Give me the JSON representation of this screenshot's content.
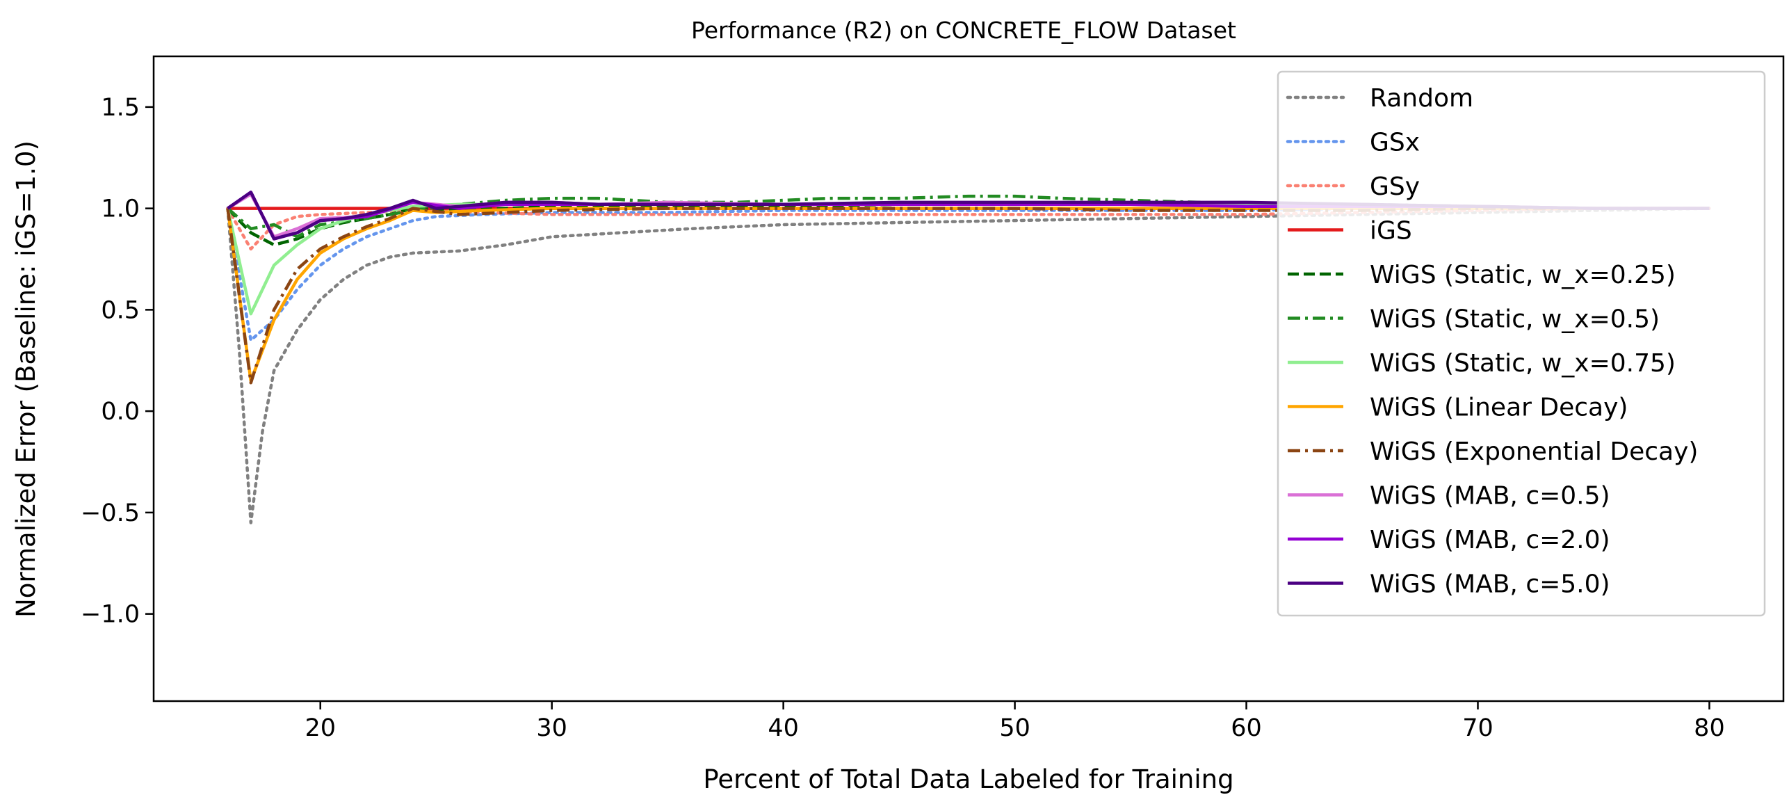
{
  "chart_data": {
    "type": "line",
    "title": "Performance (R2) on CONCRETE_FLOW Dataset",
    "xlabel": "Percent of Total Data Labeled for Training",
    "ylabel": "Normalized Error (Baseline: iGS=1.0)",
    "xlim": [
      12.8,
      83.2
    ],
    "ylim": [
      -1.43,
      1.75
    ],
    "xticks": [
      20,
      30,
      40,
      50,
      60,
      70,
      80
    ],
    "yticks": [
      -1.0,
      -0.5,
      0.0,
      0.5,
      1.0,
      1.5
    ],
    "xtick_labels": [
      "20",
      "30",
      "40",
      "50",
      "60",
      "70",
      "80"
    ],
    "ytick_labels": [
      "−1.0",
      "−0.5",
      "0.0",
      "0.5",
      "1.0",
      "1.5"
    ],
    "grid": false,
    "legend_position": "top-right",
    "series": [
      {
        "name": "Random",
        "color": "#808080",
        "dash": "dotted",
        "width": 4.5,
        "points": [
          [
            16,
            1.0
          ],
          [
            16.5,
            0.3
          ],
          [
            17,
            -0.55
          ],
          [
            17.5,
            -0.1
          ],
          [
            18,
            0.2
          ],
          [
            19,
            0.4
          ],
          [
            20,
            0.55
          ],
          [
            21,
            0.65
          ],
          [
            22,
            0.72
          ],
          [
            23,
            0.76
          ],
          [
            24,
            0.78
          ],
          [
            26,
            0.79
          ],
          [
            28,
            0.82
          ],
          [
            30,
            0.86
          ],
          [
            33,
            0.88
          ],
          [
            36,
            0.9
          ],
          [
            40,
            0.92
          ],
          [
            45,
            0.93
          ],
          [
            50,
            0.94
          ],
          [
            55,
            0.95
          ],
          [
            60,
            0.96
          ],
          [
            65,
            0.97
          ],
          [
            70,
            0.98
          ],
          [
            75,
            0.99
          ],
          [
            80,
            1.0
          ]
        ]
      },
      {
        "name": "GSx",
        "color": "#6495ED",
        "dash": "dotted",
        "width": 4.5,
        "points": [
          [
            16,
            1.0
          ],
          [
            17,
            0.35
          ],
          [
            18,
            0.45
          ],
          [
            19,
            0.6
          ],
          [
            20,
            0.72
          ],
          [
            21,
            0.8
          ],
          [
            22,
            0.86
          ],
          [
            23,
            0.9
          ],
          [
            24,
            0.94
          ],
          [
            25,
            0.96
          ],
          [
            27,
            0.97
          ],
          [
            30,
            0.98
          ],
          [
            35,
            0.98
          ],
          [
            40,
            0.99
          ],
          [
            45,
            0.99
          ],
          [
            50,
            0.99
          ],
          [
            55,
            0.99
          ],
          [
            60,
            0.99
          ],
          [
            65,
            1.0
          ],
          [
            70,
            1.0
          ],
          [
            75,
            1.0
          ],
          [
            80,
            1.0
          ]
        ]
      },
      {
        "name": "GSy",
        "color": "#FA8072",
        "dash": "dotted",
        "width": 4.5,
        "points": [
          [
            16,
            1.0
          ],
          [
            17,
            0.8
          ],
          [
            18,
            0.92
          ],
          [
            19,
            0.96
          ],
          [
            20,
            0.97
          ],
          [
            22,
            0.98
          ],
          [
            24,
            0.99
          ],
          [
            27,
            0.98
          ],
          [
            30,
            0.97
          ],
          [
            35,
            0.97
          ],
          [
            40,
            0.97
          ],
          [
            45,
            0.97
          ],
          [
            50,
            0.97
          ],
          [
            55,
            0.97
          ],
          [
            60,
            0.97
          ],
          [
            65,
            0.98
          ],
          [
            70,
            0.99
          ],
          [
            75,
            1.0
          ],
          [
            80,
            1.0
          ]
        ]
      },
      {
        "name": "iGS",
        "color": "#E41A1C",
        "dash": "solid",
        "width": 4.5,
        "points": [
          [
            16,
            1.0
          ],
          [
            80,
            1.0
          ]
        ]
      },
      {
        "name": "WiGS (Static, w_x=0.25)",
        "color": "#006400",
        "dash": "dashed",
        "width": 4.5,
        "points": [
          [
            16,
            1.0
          ],
          [
            17,
            0.88
          ],
          [
            18,
            0.82
          ],
          [
            19,
            0.85
          ],
          [
            20,
            0.9
          ],
          [
            21,
            0.93
          ],
          [
            22,
            0.95
          ],
          [
            23,
            0.97
          ],
          [
            24,
            1.0
          ],
          [
            26,
            0.99
          ],
          [
            28,
            1.0
          ],
          [
            30,
            1.01
          ],
          [
            35,
            1.01
          ],
          [
            40,
            1.01
          ],
          [
            45,
            1.02
          ],
          [
            50,
            1.02
          ],
          [
            55,
            1.02
          ],
          [
            60,
            1.02
          ],
          [
            65,
            1.01
          ],
          [
            70,
            1.01
          ],
          [
            75,
            1.0
          ],
          [
            80,
            1.0
          ]
        ]
      },
      {
        "name": "WiGS (Static, w_x=0.5)",
        "color": "#228B22",
        "dash": "dashdot",
        "width": 4.5,
        "points": [
          [
            16,
            1.0
          ],
          [
            17,
            0.9
          ],
          [
            18,
            0.92
          ],
          [
            19,
            0.86
          ],
          [
            20,
            0.92
          ],
          [
            22,
            0.95
          ],
          [
            24,
            0.99
          ],
          [
            26,
            1.02
          ],
          [
            28,
            1.04
          ],
          [
            30,
            1.05
          ],
          [
            32,
            1.05
          ],
          [
            35,
            1.03
          ],
          [
            38,
            1.03
          ],
          [
            40,
            1.04
          ],
          [
            42,
            1.05
          ],
          [
            45,
            1.05
          ],
          [
            48,
            1.06
          ],
          [
            50,
            1.06
          ],
          [
            52,
            1.05
          ],
          [
            55,
            1.04
          ],
          [
            58,
            1.03
          ],
          [
            60,
            1.02
          ],
          [
            65,
            1.02
          ],
          [
            70,
            1.01
          ],
          [
            75,
            1.0
          ],
          [
            80,
            1.0
          ]
        ]
      },
      {
        "name": "WiGS (Static, w_x=0.75)",
        "color": "#90EE90",
        "dash": "solid",
        "width": 4.5,
        "points": [
          [
            16,
            1.0
          ],
          [
            17,
            0.48
          ],
          [
            18,
            0.72
          ],
          [
            19,
            0.82
          ],
          [
            20,
            0.9
          ],
          [
            21,
            0.94
          ],
          [
            22,
            0.97
          ],
          [
            23,
            0.99
          ],
          [
            24,
            1.01
          ],
          [
            26,
            1.02
          ],
          [
            28,
            1.02
          ],
          [
            30,
            1.02
          ],
          [
            35,
            1.02
          ],
          [
            40,
            1.02
          ],
          [
            45,
            1.02
          ],
          [
            50,
            1.02
          ],
          [
            55,
            1.02
          ],
          [
            60,
            1.02
          ],
          [
            65,
            1.01
          ],
          [
            70,
            1.01
          ],
          [
            75,
            1.0
          ],
          [
            80,
            1.0
          ]
        ]
      },
      {
        "name": "WiGS (Linear Decay)",
        "color": "#FFA500",
        "dash": "solid",
        "width": 4.5,
        "points": [
          [
            16,
            1.0
          ],
          [
            17,
            0.15
          ],
          [
            18,
            0.45
          ],
          [
            19,
            0.65
          ],
          [
            20,
            0.78
          ],
          [
            21,
            0.85
          ],
          [
            22,
            0.9
          ],
          [
            23,
            0.94
          ],
          [
            24,
            0.99
          ],
          [
            25,
            0.98
          ],
          [
            27,
            0.99
          ],
          [
            30,
            1.0
          ],
          [
            35,
            1.0
          ],
          [
            40,
            1.0
          ],
          [
            45,
            1.0
          ],
          [
            50,
            1.0
          ],
          [
            55,
            1.0
          ],
          [
            60,
            1.0
          ],
          [
            65,
            1.0
          ],
          [
            70,
            1.0
          ],
          [
            75,
            1.0
          ],
          [
            80,
            1.0
          ]
        ]
      },
      {
        "name": "WiGS (Exponential Decay)",
        "color": "#8B4513",
        "dash": "dashdot",
        "width": 4.5,
        "points": [
          [
            16,
            1.0
          ],
          [
            17,
            0.14
          ],
          [
            18,
            0.5
          ],
          [
            19,
            0.7
          ],
          [
            20,
            0.8
          ],
          [
            21,
            0.86
          ],
          [
            22,
            0.91
          ],
          [
            23,
            0.95
          ],
          [
            24,
            1.0
          ],
          [
            26,
            0.97
          ],
          [
            28,
            0.98
          ],
          [
            30,
            0.99
          ],
          [
            35,
            1.0
          ],
          [
            40,
            1.0
          ],
          [
            45,
            1.0
          ],
          [
            50,
            1.0
          ],
          [
            55,
            0.99
          ],
          [
            60,
            0.99
          ],
          [
            65,
            0.99
          ],
          [
            70,
            1.0
          ],
          [
            75,
            1.0
          ],
          [
            80,
            1.0
          ]
        ]
      },
      {
        "name": "WiGS (MAB, c=0.5)",
        "color": "#DA70D6",
        "dash": "solid",
        "width": 4.5,
        "points": [
          [
            16,
            1.0
          ],
          [
            17,
            1.07
          ],
          [
            18,
            0.86
          ],
          [
            19,
            0.9
          ],
          [
            20,
            0.95
          ],
          [
            22,
            0.96
          ],
          [
            24,
            1.03
          ],
          [
            26,
            1.01
          ],
          [
            28,
            1.03
          ],
          [
            30,
            1.03
          ],
          [
            32,
            1.02
          ],
          [
            35,
            1.03
          ],
          [
            40,
            1.02
          ],
          [
            45,
            1.02
          ],
          [
            50,
            1.02
          ],
          [
            55,
            1.02
          ],
          [
            60,
            1.01
          ],
          [
            65,
            1.01
          ],
          [
            70,
            1.01
          ],
          [
            75,
            1.0
          ],
          [
            80,
            1.0
          ]
        ]
      },
      {
        "name": "WiGS (MAB, c=2.0)",
        "color": "#9400D3",
        "dash": "solid",
        "width": 4.5,
        "points": [
          [
            16,
            1.0
          ],
          [
            17,
            1.08
          ],
          [
            18,
            0.85
          ],
          [
            19,
            0.88
          ],
          [
            20,
            0.94
          ],
          [
            22,
            0.96
          ],
          [
            24,
            1.03
          ],
          [
            26,
            1.0
          ],
          [
            28,
            1.02
          ],
          [
            30,
            1.02
          ],
          [
            32,
            1.02
          ],
          [
            35,
            1.02
          ],
          [
            40,
            1.02
          ],
          [
            45,
            1.02
          ],
          [
            50,
            1.02
          ],
          [
            55,
            1.02
          ],
          [
            60,
            1.01
          ],
          [
            65,
            1.01
          ],
          [
            70,
            1.01
          ],
          [
            75,
            1.0
          ],
          [
            80,
            1.0
          ]
        ]
      },
      {
        "name": "WiGS (MAB, c=5.0)",
        "color": "#4B0082",
        "dash": "solid",
        "width": 4.5,
        "points": [
          [
            16,
            1.0
          ],
          [
            17,
            1.08
          ],
          [
            18,
            0.85
          ],
          [
            19,
            0.88
          ],
          [
            20,
            0.94
          ],
          [
            21,
            0.95
          ],
          [
            22,
            0.97
          ],
          [
            23,
            1.0
          ],
          [
            24,
            1.04
          ],
          [
            25,
            1.0
          ],
          [
            26,
            1.01
          ],
          [
            28,
            1.03
          ],
          [
            30,
            1.03
          ],
          [
            32,
            1.02
          ],
          [
            35,
            1.02
          ],
          [
            40,
            1.02
          ],
          [
            45,
            1.03
          ],
          [
            50,
            1.03
          ],
          [
            55,
            1.03
          ],
          [
            60,
            1.03
          ],
          [
            65,
            1.02
          ],
          [
            70,
            1.01
          ],
          [
            75,
            1.0
          ],
          [
            80,
            1.0
          ]
        ]
      }
    ]
  }
}
